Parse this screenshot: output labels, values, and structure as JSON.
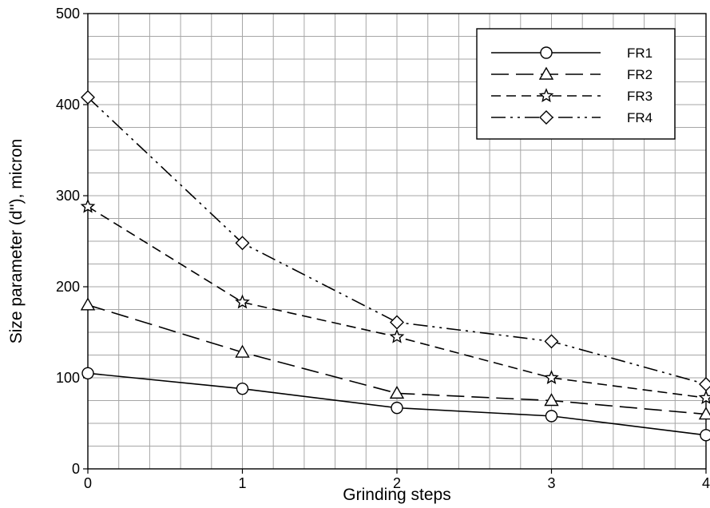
{
  "chart_data": {
    "type": "line",
    "xlabel": "Grinding steps",
    "ylabel": "Size parameter (d''), micron",
    "xlim": [
      0,
      4
    ],
    "ylim": [
      0,
      500
    ],
    "x_ticks": [
      0,
      1,
      2,
      3,
      4
    ],
    "y_ticks": [
      0,
      100,
      200,
      300,
      400,
      500
    ],
    "grid": true,
    "legend_position": "top-right",
    "x": [
      0,
      1,
      2,
      3,
      4
    ],
    "series": [
      {
        "name": "FR1",
        "values": [
          105,
          88,
          67,
          58,
          37
        ],
        "marker": "circle",
        "dash": "solid"
      },
      {
        "name": "FR2",
        "values": [
          180,
          128,
          83,
          75,
          60
        ],
        "marker": "triangle",
        "dash": "long-dash"
      },
      {
        "name": "FR3",
        "values": [
          288,
          183,
          145,
          100,
          78
        ],
        "marker": "star",
        "dash": "dash"
      },
      {
        "name": "FR4",
        "values": [
          408,
          248,
          161,
          140,
          93
        ],
        "marker": "diamond",
        "dash": "dash-dot-dot"
      }
    ]
  }
}
